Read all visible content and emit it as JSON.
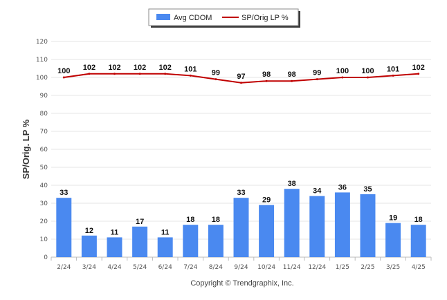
{
  "chart_data": {
    "type": "bar",
    "categories": [
      "2/24",
      "3/24",
      "4/24",
      "5/24",
      "6/24",
      "7/24",
      "8/24",
      "9/24",
      "10/24",
      "11/24",
      "12/24",
      "1/25",
      "2/25",
      "3/25",
      "4/25"
    ],
    "series": [
      {
        "name": "Avg CDOM",
        "type": "bar",
        "color": "#4a89f0",
        "values": [
          33,
          12,
          11,
          17,
          11,
          18,
          18,
          33,
          29,
          38,
          34,
          36,
          35,
          19,
          18
        ]
      },
      {
        "name": "SP/Orig LP %",
        "type": "line",
        "color": "#c00000",
        "values": [
          100,
          102,
          102,
          102,
          102,
          101,
          99,
          97,
          98,
          98,
          99,
          100,
          100,
          101,
          102
        ]
      }
    ],
    "ylabel": "SP/Orig. LP %",
    "xlabel": "",
    "ylim": [
      0,
      120
    ],
    "yticks": [
      0,
      10,
      20,
      30,
      40,
      50,
      60,
      70,
      80,
      90,
      100,
      110,
      120
    ],
    "grid": true,
    "legend": "top-center"
  },
  "footer": {
    "copyright": "Copyright © Trendgraphix, Inc."
  }
}
